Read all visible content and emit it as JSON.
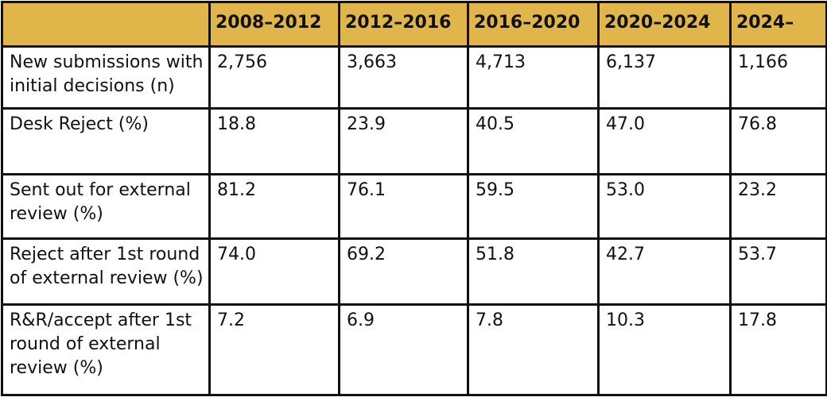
{
  "table": {
    "header": [
      "",
      "2008–2012",
      "2012–2016",
      "2016–2020",
      "2020–2024",
      "2024–"
    ],
    "rows": [
      {
        "label": "New submissions with initial decisions (n)",
        "values": [
          "2,756",
          "3,663",
          "4,713",
          "6,137",
          "1,166"
        ]
      },
      {
        "label": "Desk Reject (%)",
        "values": [
          "18.8",
          "23.9",
          "40.5",
          "47.0",
          "76.8"
        ]
      },
      {
        "label": "Sent out for external review (%)",
        "values": [
          "81.2",
          "76.1",
          "59.5",
          "53.0",
          "23.2"
        ]
      },
      {
        "label": "Reject after 1st round of external review (%)",
        "values": [
          "74.0",
          "69.2",
          "51.8",
          "42.7",
          "53.7"
        ]
      },
      {
        "label": "R&R/accept after 1st round of external review (%)",
        "values": [
          "7.2",
          "6.9",
          "7.8",
          "10.3",
          "17.8"
        ]
      }
    ]
  },
  "colors": {
    "header_bg": "#e0b64a",
    "border": "#111111",
    "cell_bg": "#ffffff"
  }
}
